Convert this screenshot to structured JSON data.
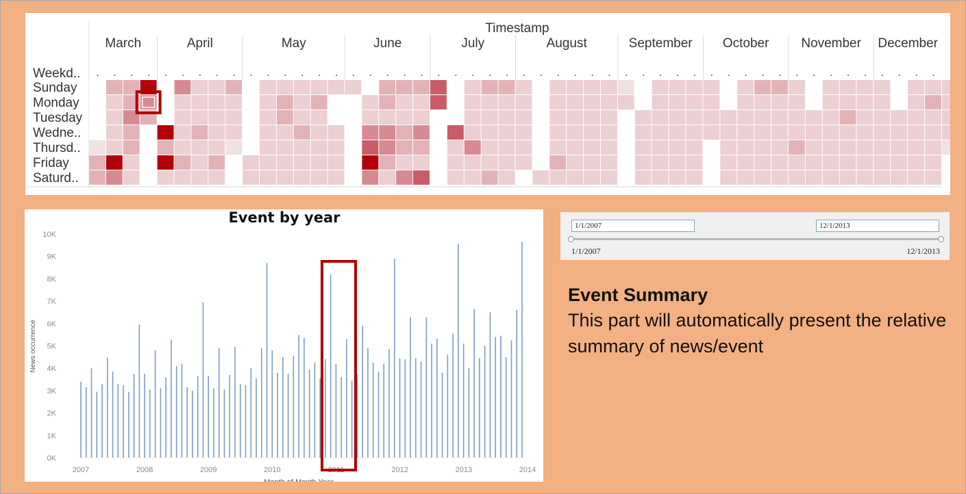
{
  "heatmap": {
    "title": "Timestamp",
    "row_header": "Weekd..",
    "rows": [
      "Sunday",
      "Monday",
      "Tuesday",
      "Wedne..",
      "Thursd..",
      "Friday",
      "Saturd.."
    ],
    "months": [
      {
        "label": "March",
        "weeks": 4
      },
      {
        "label": "April",
        "weeks": 5
      },
      {
        "label": "May",
        "weeks": 6
      },
      {
        "label": "June",
        "weeks": 5
      },
      {
        "label": "July",
        "weeks": 5
      },
      {
        "label": "August",
        "weeks": 6
      },
      {
        "label": "September",
        "weeks": 5
      },
      {
        "label": "October",
        "weeks": 5
      },
      {
        "label": "November",
        "weeks": 5
      },
      {
        "label": "December",
        "weeks": 4
      }
    ],
    "color_scale": [
      "#ffffff",
      "#f1e1e2",
      "#ebcfd2",
      "#e3b2b7",
      "#d78a92",
      "#c95c66",
      "#b3000a"
    ],
    "intensity": [
      [
        0,
        3,
        3,
        6,
        0,
        4,
        2,
        2,
        3,
        0,
        2,
        2,
        2,
        2,
        2,
        2,
        0,
        3,
        3,
        3,
        5,
        0,
        2,
        3,
        3,
        2,
        0,
        2,
        2,
        2,
        2,
        1,
        0,
        2,
        2,
        2,
        2,
        0,
        2,
        3,
        3,
        2,
        0,
        2,
        2,
        2,
        2,
        0,
        2,
        2,
        2
      ],
      [
        0,
        2,
        3,
        4,
        0,
        2,
        2,
        2,
        2,
        0,
        2,
        3,
        2,
        3,
        0,
        0,
        2,
        3,
        2,
        2,
        5,
        0,
        2,
        2,
        2,
        2,
        0,
        2,
        2,
        2,
        2,
        2,
        0,
        2,
        2,
        2,
        2,
        0,
        2,
        2,
        2,
        2,
        0,
        2,
        2,
        2,
        2,
        0,
        2,
        3,
        2
      ],
      [
        0,
        2,
        4,
        3,
        0,
        2,
        2,
        2,
        2,
        0,
        2,
        3,
        2,
        2,
        0,
        0,
        2,
        2,
        2,
        2,
        0,
        0,
        2,
        2,
        2,
        2,
        0,
        2,
        2,
        2,
        2,
        0,
        2,
        2,
        2,
        2,
        2,
        2,
        2,
        2,
        2,
        2,
        2,
        2,
        3,
        2,
        2,
        2,
        2,
        2,
        2
      ],
      [
        0,
        2,
        3,
        0,
        6,
        2,
        3,
        2,
        2,
        0,
        2,
        2,
        3,
        2,
        2,
        0,
        4,
        4,
        3,
        4,
        0,
        5,
        2,
        2,
        2,
        2,
        0,
        2,
        2,
        2,
        2,
        0,
        2,
        2,
        2,
        2,
        2,
        2,
        2,
        2,
        2,
        2,
        2,
        2,
        2,
        2,
        2,
        2,
        2,
        2,
        2
      ],
      [
        1,
        2,
        3,
        0,
        3,
        2,
        2,
        2,
        1,
        0,
        2,
        2,
        2,
        2,
        2,
        0,
        5,
        4,
        3,
        3,
        0,
        2,
        4,
        2,
        2,
        2,
        0,
        2,
        2,
        2,
        2,
        0,
        2,
        2,
        2,
        2,
        0,
        2,
        2,
        2,
        2,
        3,
        2,
        2,
        2,
        2,
        2,
        2,
        2,
        2,
        1
      ],
      [
        3,
        6,
        2,
        0,
        6,
        3,
        2,
        3,
        0,
        2,
        2,
        2,
        2,
        2,
        2,
        0,
        6,
        3,
        2,
        2,
        0,
        2,
        2,
        2,
        2,
        2,
        0,
        3,
        2,
        2,
        2,
        0,
        2,
        2,
        2,
        2,
        0,
        2,
        2,
        2,
        2,
        2,
        2,
        2,
        2,
        2,
        2,
        2,
        2,
        2,
        0
      ],
      [
        3,
        4,
        2,
        0,
        2,
        2,
        2,
        2,
        0,
        2,
        2,
        2,
        2,
        2,
        2,
        0,
        4,
        2,
        4,
        5,
        0,
        2,
        2,
        3,
        2,
        0,
        2,
        2,
        2,
        2,
        2,
        0,
        2,
        2,
        2,
        2,
        0,
        2,
        2,
        2,
        2,
        2,
        2,
        2,
        2,
        2,
        2,
        2,
        2,
        2,
        0
      ]
    ]
  },
  "chart_data": {
    "type": "bar",
    "title": "Event by year",
    "xlabel": "Month of Month Year",
    "ylabel": "News occurrence",
    "ylim": [
      0,
      10000
    ],
    "yticks": [
      0,
      1000,
      2000,
      3000,
      4000,
      5000,
      6000,
      7000,
      8000,
      9000,
      10000
    ],
    "ytick_labels": [
      "0K",
      "1K",
      "2K",
      "3K",
      "4K",
      "5K",
      "6K",
      "7K",
      "8K",
      "9K",
      "10K"
    ],
    "xticks": [
      2007,
      2008,
      2009,
      2010,
      2011,
      2012,
      2013,
      2014
    ],
    "xtick_labels": [
      "2007",
      "2008",
      "2009",
      "2010",
      "2011",
      "2012",
      "2013",
      "2014"
    ],
    "x_start": 2007.0,
    "x_step": 0.0833,
    "bar_color": "#7a9cc6",
    "values": [
      3400,
      3150,
      4000,
      2950,
      3300,
      4480,
      3850,
      3300,
      3250,
      2950,
      3750,
      5950,
      3750,
      3050,
      4800,
      3100,
      3600,
      5280,
      4100,
      4200,
      3150,
      3000,
      3650,
      6950,
      3650,
      3100,
      4900,
      3050,
      3700,
      4950,
      3300,
      3250,
      4000,
      3550,
      4900,
      8700,
      4800,
      3800,
      4500,
      3750,
      4550,
      5480,
      5350,
      3950,
      4250,
      3550,
      4400,
      8200,
      4200,
      3600,
      5300,
      3450,
      3700,
      5900,
      4900,
      4250,
      3850,
      4200,
      4850,
      8900,
      4450,
      4400,
      6280,
      4450,
      4300,
      6280,
      5100,
      5320,
      3800,
      4600,
      5550,
      9550,
      5100,
      4000,
      6650,
      4450,
      5000,
      6500,
      5400,
      5450,
      4500,
      5250,
      6600,
      9650
    ]
  },
  "highlight_box_color": "#b00000",
  "filter": {
    "start_input": "1/1/2007",
    "end_input": "12/1/2013",
    "start_label": "1/1/2007",
    "end_label": "12/1/2013"
  },
  "summary": {
    "title": "Event Summary",
    "text": "This part will automatically present the relative summary of news/event"
  }
}
